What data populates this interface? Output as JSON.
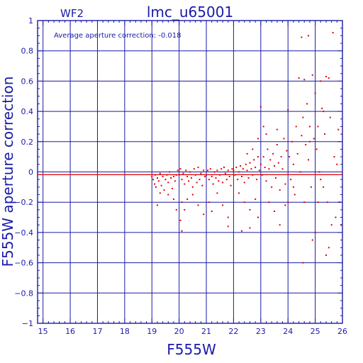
{
  "chart_data": {
    "type": "scatter",
    "panel_label": "WF2",
    "title": "lmc_u65001",
    "annotation": "Average aperture correction: -0.018",
    "xlabel": "F555W",
    "ylabel": "F555W aperture correction",
    "xlim": [
      14.8,
      26.0
    ],
    "ylim": [
      -1.0,
      1.0
    ],
    "xticks": [
      15,
      16,
      17,
      18,
      19,
      20,
      21,
      22,
      23,
      24,
      25,
      26
    ],
    "yticks": [
      -1,
      -0.8,
      -0.6,
      -0.4,
      -0.2,
      0,
      0.2,
      0.4,
      0.6,
      0.8,
      1
    ],
    "ytick_labels": [
      "−1",
      "−0.8",
      "−0.6",
      "−0.4",
      "−0.2",
      "0",
      "0.2",
      "0.4",
      "0.6",
      "0.8",
      "1"
    ],
    "grid": true,
    "average_line": -0.018,
    "zero_line": 0,
    "colors": {
      "axes": "#1a1aa8",
      "points": "#e00000",
      "line": "#e00000",
      "grid": "#1a1aa8"
    },
    "points": [
      [
        19.0,
        -0.03
      ],
      [
        19.05,
        -0.05
      ],
      [
        19.1,
        -0.08
      ],
      [
        19.12,
        -0.02
      ],
      [
        19.15,
        -0.1
      ],
      [
        19.2,
        -0.04
      ],
      [
        19.25,
        -0.06
      ],
      [
        19.3,
        -0.01
      ],
      [
        19.35,
        -0.09
      ],
      [
        19.4,
        -0.03
      ],
      [
        19.45,
        -0.12
      ],
      [
        19.5,
        -0.05
      ],
      [
        19.55,
        -0.02
      ],
      [
        19.6,
        -0.07
      ],
      [
        19.65,
        0.0
      ],
      [
        19.7,
        -0.04
      ],
      [
        19.75,
        -0.11
      ],
      [
        19.8,
        -0.03
      ],
      [
        19.85,
        -0.06
      ],
      [
        19.9,
        -0.02
      ],
      [
        19.95,
        0.01
      ],
      [
        19.2,
        -0.22
      ],
      [
        19.3,
        -0.14
      ],
      [
        19.6,
        -0.15
      ],
      [
        19.8,
        -0.18
      ],
      [
        19.9,
        -0.25
      ],
      [
        20.0,
        -0.02
      ],
      [
        20.05,
        0.02
      ],
      [
        20.1,
        -0.05
      ],
      [
        20.15,
        -0.01
      ],
      [
        20.2,
        -0.08
      ],
      [
        20.25,
        0.01
      ],
      [
        20.3,
        -0.03
      ],
      [
        20.35,
        -0.06
      ],
      [
        20.4,
        0.0
      ],
      [
        20.45,
        -0.04
      ],
      [
        20.5,
        -0.1
      ],
      [
        20.55,
        0.02
      ],
      [
        20.6,
        -0.02
      ],
      [
        20.65,
        -0.07
      ],
      [
        20.7,
        0.03
      ],
      [
        20.75,
        -0.05
      ],
      [
        20.8,
        -0.01
      ],
      [
        20.85,
        -0.09
      ],
      [
        20.9,
        0.01
      ],
      [
        20.95,
        -0.03
      ],
      [
        20.1,
        -0.2
      ],
      [
        20.2,
        -0.25
      ],
      [
        20.3,
        -0.18
      ],
      [
        20.05,
        -0.32
      ],
      [
        20.1,
        -0.39
      ],
      [
        20.5,
        -0.15
      ],
      [
        20.7,
        -0.22
      ],
      [
        20.9,
        -0.28
      ],
      [
        21.0,
        -0.02
      ],
      [
        21.05,
        0.01
      ],
      [
        21.1,
        -0.05
      ],
      [
        21.15,
        0.02
      ],
      [
        21.2,
        -0.03
      ],
      [
        21.25,
        -0.08
      ],
      [
        21.3,
        0.0
      ],
      [
        21.35,
        -0.04
      ],
      [
        21.4,
        0.01
      ],
      [
        21.45,
        -0.06
      ],
      [
        21.5,
        -0.02
      ],
      [
        21.55,
        0.02
      ],
      [
        21.6,
        -0.07
      ],
      [
        21.65,
        0.03
      ],
      [
        21.7,
        -0.01
      ],
      [
        21.75,
        -0.05
      ],
      [
        21.8,
        0.01
      ],
      [
        21.85,
        -0.03
      ],
      [
        21.9,
        -0.09
      ],
      [
        21.95,
        0.02
      ],
      [
        21.1,
        -0.2
      ],
      [
        21.2,
        -0.26
      ],
      [
        21.4,
        -0.14
      ],
      [
        21.6,
        -0.22
      ],
      [
        21.8,
        -0.3
      ],
      [
        21.8,
        -0.36
      ],
      [
        22.0,
        0.01
      ],
      [
        22.05,
        -0.02
      ],
      [
        22.1,
        0.03
      ],
      [
        22.15,
        -0.05
      ],
      [
        22.2,
        0.0
      ],
      [
        22.25,
        0.04
      ],
      [
        22.3,
        -0.03
      ],
      [
        22.35,
        0.02
      ],
      [
        22.4,
        -0.07
      ],
      [
        22.45,
        0.05
      ],
      [
        22.5,
        0.01
      ],
      [
        22.55,
        -0.04
      ],
      [
        22.6,
        0.06
      ],
      [
        22.65,
        0.02
      ],
      [
        22.7,
        -0.02
      ],
      [
        22.75,
        0.08
      ],
      [
        22.8,
        0.03
      ],
      [
        22.85,
        -0.05
      ],
      [
        22.9,
        0.1
      ],
      [
        22.95,
        0.01
      ],
      [
        22.2,
        -0.14
      ],
      [
        22.4,
        -0.2
      ],
      [
        22.6,
        -0.25
      ],
      [
        22.8,
        -0.18
      ],
      [
        22.9,
        -0.3
      ],
      [
        22.6,
        -0.37
      ],
      [
        22.3,
        -0.39
      ],
      [
        22.5,
        0.12
      ],
      [
        22.7,
        0.15
      ],
      [
        22.9,
        0.22
      ],
      [
        23.0,
        0.05
      ],
      [
        23.05,
        -0.02
      ],
      [
        23.1,
        0.1
      ],
      [
        23.15,
        0.03
      ],
      [
        23.2,
        -0.06
      ],
      [
        23.25,
        0.15
      ],
      [
        23.3,
        0.02
      ],
      [
        23.35,
        0.08
      ],
      [
        23.4,
        -0.1
      ],
      [
        23.45,
        0.12
      ],
      [
        23.5,
        0.04
      ],
      [
        23.55,
        -0.04
      ],
      [
        23.6,
        0.18
      ],
      [
        23.65,
        0.06
      ],
      [
        23.7,
        -0.12
      ],
      [
        23.75,
        0.1
      ],
      [
        23.8,
        0.02
      ],
      [
        23.85,
        0.22
      ],
      [
        23.9,
        -0.08
      ],
      [
        23.95,
        0.14
      ],
      [
        23.1,
        0.3
      ],
      [
        23.0,
        0.43
      ],
      [
        23.3,
        -0.2
      ],
      [
        23.5,
        -0.26
      ],
      [
        23.7,
        -0.35
      ],
      [
        23.9,
        -0.22
      ],
      [
        23.2,
        0.25
      ],
      [
        23.6,
        0.28
      ],
      [
        24.0,
        0.41
      ],
      [
        24.05,
        0.1
      ],
      [
        24.1,
        -0.05
      ],
      [
        24.15,
        0.2
      ],
      [
        24.2,
        0.05
      ],
      [
        24.25,
        -0.15
      ],
      [
        24.3,
        0.3
      ],
      [
        24.35,
        0.12
      ],
      [
        24.4,
        0.62
      ],
      [
        24.45,
        0.0
      ],
      [
        24.5,
        0.24
      ],
      [
        24.55,
        0.36
      ],
      [
        24.6,
        -0.2
      ],
      [
        24.65,
        0.18
      ],
      [
        24.7,
        0.45
      ],
      [
        24.75,
        0.08
      ],
      [
        24.8,
        0.3
      ],
      [
        24.85,
        -0.1
      ],
      [
        24.9,
        0.64
      ],
      [
        24.95,
        0.22
      ],
      [
        24.5,
        0.89
      ],
      [
        24.75,
        0.9
      ],
      [
        24.55,
        -0.6
      ],
      [
        24.0,
        -0.2
      ],
      [
        24.2,
        -0.1
      ],
      [
        24.6,
        0.61
      ],
      [
        25.0,
        0.52
      ],
      [
        25.05,
        0.15
      ],
      [
        25.1,
        0.3
      ],
      [
        25.15,
        0.0
      ],
      [
        25.2,
        0.6
      ],
      [
        25.25,
        0.42
      ],
      [
        25.3,
        -0.1
      ],
      [
        25.35,
        0.25
      ],
      [
        25.4,
        0.63
      ],
      [
        25.45,
        -0.2
      ],
      [
        25.5,
        0.62
      ],
      [
        25.55,
        0.36
      ],
      [
        25.6,
        -0.35
      ],
      [
        25.65,
        0.92
      ],
      [
        25.7,
        0.1
      ],
      [
        25.75,
        -0.3
      ],
      [
        25.8,
        0.05
      ],
      [
        25.85,
        0.28
      ],
      [
        25.9,
        -0.2
      ],
      [
        25.95,
        -0.35
      ],
      [
        25.4,
        -0.55
      ],
      [
        25.5,
        -0.5
      ],
      [
        25.3,
        0.4
      ],
      [
        25.2,
        -0.05
      ],
      [
        25.0,
        -0.4
      ],
      [
        25.1,
        -0.2
      ],
      [
        24.8,
        0.2
      ],
      [
        24.9,
        -0.45
      ]
    ]
  }
}
